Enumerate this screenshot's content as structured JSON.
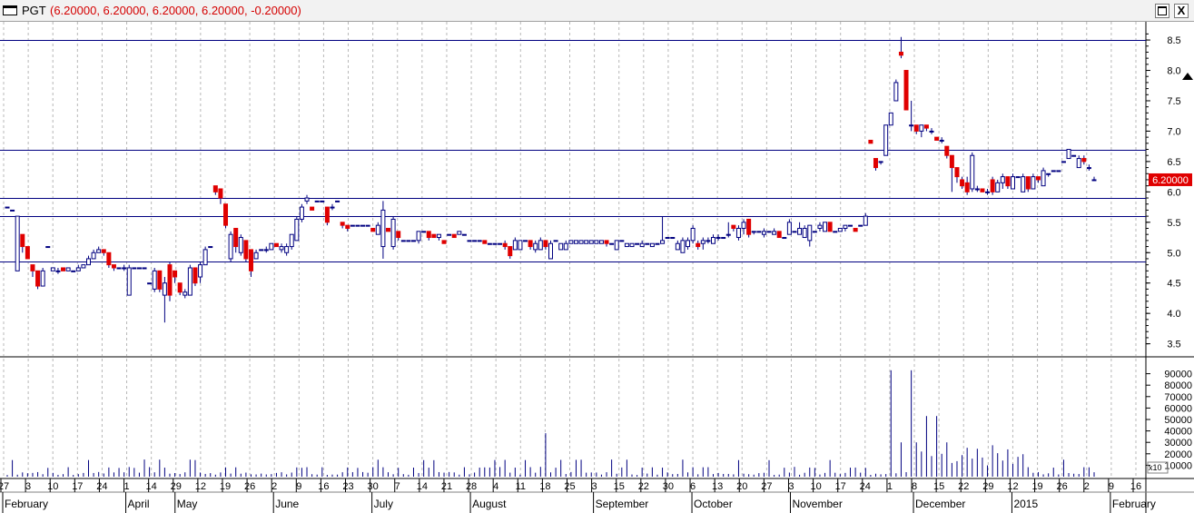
{
  "window": {
    "symbol": "PGT",
    "quote": "(6.20000, 6.20000, 6.20000, 6.20000, -0.20000)",
    "maximize_icon": "maximize-icon",
    "close_label": "X"
  },
  "price_panel": {
    "y_ticks": [
      "8.5",
      "8.0",
      "7.5",
      "7.0",
      "6.5",
      "6.0",
      "5.5",
      "5.0",
      "4.5",
      "4.0",
      "3.5"
    ],
    "last_price_label": "6.20000",
    "last_price_color": "#e00000",
    "scroll_up_icon": "scroll-up-arrow-icon"
  },
  "volume_panel": {
    "y_ticks": [
      "90000",
      "80000",
      "70000",
      "60000",
      "50000",
      "40000",
      "30000",
      "20000",
      "10000"
    ],
    "multiplier": "x10"
  },
  "x_axis": {
    "day_labels": [
      "27",
      "3",
      "10",
      "17",
      "24",
      "1",
      "14",
      "29",
      "12",
      "19",
      "26",
      "2",
      "9",
      "16",
      "23",
      "30",
      "7",
      "14",
      "21",
      "28",
      "4",
      "11",
      "18",
      "25",
      "3",
      "15",
      "22",
      "30",
      "6",
      "13",
      "20",
      "27",
      "3",
      "10",
      "17",
      "24",
      "1",
      "8",
      "15",
      "22",
      "29",
      "12",
      "19",
      "26",
      "2",
      "9",
      "16"
    ],
    "month_labels": [
      "February",
      "April",
      "May",
      "June",
      "July",
      "August",
      "September",
      "October",
      "November",
      "December",
      "2015",
      "February"
    ]
  },
  "colors": {
    "up_fill": "#ffffff",
    "down_fill": "#e00000",
    "candle_line": "#000080",
    "guide_lines": "#000080",
    "grid": "#b8b8b8"
  },
  "chart_data": {
    "type": "candlestick",
    "title": "PGT",
    "ylim": [
      3.3,
      8.8
    ],
    "horizontal_lines": [
      8.5,
      6.7,
      5.9,
      5.6,
      4.85
    ],
    "candles": [
      [
        5.75,
        5.75,
        5.75,
        5.75
      ],
      [
        5.7,
        5.7,
        5.7,
        5.7
      ],
      [
        4.7,
        5.6,
        4.7,
        5.6
      ],
      [
        5.3,
        5.3,
        5.0,
        5.1
      ],
      [
        5.1,
        5.1,
        4.9,
        4.9
      ],
      [
        4.8,
        4.8,
        4.6,
        4.7
      ],
      [
        4.7,
        4.7,
        4.4,
        4.45
      ],
      [
        4.45,
        4.75,
        4.45,
        4.7
      ],
      [
        5.1,
        5.1,
        5.1,
        5.1
      ],
      [
        4.7,
        4.75,
        4.7,
        4.75
      ],
      [
        4.7,
        4.75,
        4.65,
        4.7
      ],
      [
        4.75,
        4.75,
        4.7,
        4.7
      ],
      [
        4.7,
        4.75,
        4.7,
        4.75
      ],
      [
        4.7,
        4.7,
        4.7,
        4.7
      ],
      [
        4.7,
        4.8,
        4.7,
        4.75
      ],
      [
        4.75,
        4.8,
        4.75,
        4.8
      ],
      [
        4.8,
        4.95,
        4.8,
        4.9
      ],
      [
        4.9,
        5.05,
        4.9,
        5.0
      ],
      [
        5.0,
        5.1,
        5.0,
        5.05
      ],
      [
        5.05,
        5.05,
        4.95,
        5.0
      ],
      [
        5.0,
        5.0,
        4.75,
        4.8
      ],
      [
        4.8,
        4.8,
        4.7,
        4.75
      ],
      [
        4.75,
        4.75,
        4.75,
        4.75
      ],
      [
        4.75,
        4.8,
        4.7,
        4.75
      ],
      [
        4.3,
        4.8,
        4.3,
        4.75
      ],
      [
        4.75,
        4.75,
        4.75,
        4.75
      ],
      [
        4.75,
        4.75,
        4.75,
        4.75
      ],
      [
        4.75,
        4.75,
        4.75,
        4.75
      ],
      [
        4.5,
        4.5,
        4.5,
        4.5
      ],
      [
        4.4,
        4.75,
        4.35,
        4.7
      ],
      [
        4.7,
        4.7,
        4.35,
        4.4
      ],
      [
        4.3,
        4.6,
        3.85,
        4.5
      ],
      [
        4.8,
        4.85,
        4.2,
        4.3
      ],
      [
        4.7,
        4.7,
        4.5,
        4.6
      ],
      [
        4.5,
        4.5,
        4.3,
        4.35
      ],
      [
        4.3,
        4.4,
        4.25,
        4.35
      ],
      [
        4.3,
        4.8,
        4.3,
        4.75
      ],
      [
        4.75,
        4.75,
        4.45,
        4.5
      ],
      [
        4.6,
        4.85,
        4.5,
        4.8
      ],
      [
        4.8,
        5.1,
        4.8,
        5.05
      ],
      [
        5.1,
        5.1,
        5.1,
        5.1
      ],
      [
        6.1,
        6.1,
        5.95,
        6.0
      ],
      [
        6.05,
        6.05,
        5.8,
        5.9
      ],
      [
        5.8,
        5.8,
        5.4,
        5.45
      ],
      [
        4.9,
        5.35,
        4.85,
        5.3
      ],
      [
        5.4,
        5.4,
        5.0,
        5.1
      ],
      [
        5.0,
        5.3,
        4.95,
        5.25
      ],
      [
        5.2,
        5.2,
        4.85,
        4.9
      ],
      [
        5.05,
        5.05,
        4.6,
        4.7
      ],
      [
        4.9,
        5.05,
        4.9,
        5.0
      ],
      [
        5.05,
        5.05,
        5.05,
        5.05
      ],
      [
        5.05,
        5.1,
        5.0,
        5.05
      ],
      [
        5.05,
        5.15,
        5.05,
        5.15
      ],
      [
        5.15,
        5.15,
        5.1,
        5.1
      ],
      [
        5.05,
        5.15,
        5.0,
        5.1
      ],
      [
        5.0,
        5.15,
        4.95,
        5.1
      ],
      [
        5.1,
        5.3,
        5.05,
        5.3
      ],
      [
        5.2,
        5.6,
        5.2,
        5.55
      ],
      [
        5.55,
        5.8,
        5.5,
        5.75
      ],
      [
        5.85,
        5.95,
        5.8,
        5.9
      ],
      [
        5.75,
        5.75,
        5.7,
        5.7
      ],
      [
        5.85,
        5.85,
        5.85,
        5.85
      ],
      [
        5.85,
        5.85,
        5.85,
        5.85
      ],
      [
        5.75,
        5.75,
        5.45,
        5.5
      ],
      [
        5.75,
        5.8,
        5.7,
        5.75
      ],
      [
        5.85,
        5.85,
        5.85,
        5.85
      ],
      [
        5.5,
        5.5,
        5.4,
        5.45
      ],
      [
        5.45,
        5.45,
        5.35,
        5.4
      ],
      [
        5.45,
        5.45,
        5.45,
        5.45
      ],
      [
        5.45,
        5.45,
        5.45,
        5.45
      ],
      [
        5.45,
        5.45,
        5.45,
        5.45
      ],
      [
        5.45,
        5.45,
        5.45,
        5.45
      ],
      [
        5.4,
        5.4,
        5.35,
        5.35
      ],
      [
        5.3,
        5.5,
        5.3,
        5.45
      ],
      [
        5.1,
        5.85,
        4.9,
        5.7
      ],
      [
        5.4,
        5.4,
        5.35,
        5.35
      ],
      [
        5.1,
        5.6,
        5.05,
        5.55
      ],
      [
        5.35,
        5.35,
        5.2,
        5.25
      ],
      [
        5.2,
        5.2,
        5.2,
        5.2
      ],
      [
        5.2,
        5.2,
        5.2,
        5.2
      ],
      [
        5.2,
        5.2,
        5.2,
        5.2
      ],
      [
        5.2,
        5.35,
        5.15,
        5.35
      ],
      [
        5.35,
        5.35,
        5.35,
        5.35
      ],
      [
        5.35,
        5.35,
        5.2,
        5.25
      ],
      [
        5.3,
        5.3,
        5.25,
        5.25
      ],
      [
        5.25,
        5.3,
        5.2,
        5.3
      ],
      [
        5.2,
        5.2,
        5.15,
        5.15
      ],
      [
        5.3,
        5.3,
        5.3,
        5.3
      ],
      [
        5.3,
        5.3,
        5.25,
        5.25
      ],
      [
        5.3,
        5.35,
        5.3,
        5.35
      ],
      [
        5.3,
        5.3,
        5.3,
        5.3
      ],
      [
        5.2,
        5.2,
        5.2,
        5.2
      ],
      [
        5.2,
        5.2,
        5.2,
        5.2
      ],
      [
        5.2,
        5.2,
        5.2,
        5.2
      ],
      [
        5.2,
        5.2,
        5.15,
        5.15
      ],
      [
        5.15,
        5.15,
        5.15,
        5.15
      ],
      [
        5.15,
        5.15,
        5.15,
        5.15
      ],
      [
        5.15,
        5.15,
        5.15,
        5.15
      ],
      [
        5.15,
        5.2,
        5.05,
        5.1
      ],
      [
        5.1,
        5.1,
        4.9,
        4.95
      ],
      [
        5.05,
        5.25,
        5.05,
        5.2
      ],
      [
        5.05,
        5.2,
        5.05,
        5.2
      ],
      [
        5.2,
        5.2,
        5.2,
        5.2
      ],
      [
        5.2,
        5.2,
        5.05,
        5.1
      ],
      [
        5.05,
        5.2,
        5.0,
        5.15
      ],
      [
        5.05,
        5.25,
        5.05,
        5.2
      ],
      [
        5.2,
        5.2,
        5.05,
        5.1
      ],
      [
        4.9,
        5.2,
        4.9,
        5.15
      ],
      [
        5.2,
        5.2,
        5.2,
        5.2
      ],
      [
        5.05,
        5.15,
        5.05,
        5.15
      ],
      [
        5.05,
        5.2,
        5.05,
        5.15
      ],
      [
        5.15,
        5.2,
        5.15,
        5.2
      ],
      [
        5.15,
        5.2,
        5.15,
        5.2
      ],
      [
        5.15,
        5.2,
        5.15,
        5.2
      ],
      [
        5.15,
        5.2,
        5.15,
        5.2
      ],
      [
        5.15,
        5.2,
        5.15,
        5.2
      ],
      [
        5.15,
        5.2,
        5.15,
        5.2
      ],
      [
        5.15,
        5.2,
        5.15,
        5.2
      ],
      [
        5.2,
        5.2,
        5.1,
        5.15
      ],
      [
        5.15,
        5.15,
        5.15,
        5.15
      ],
      [
        5.05,
        5.2,
        5.05,
        5.2
      ],
      [
        5.2,
        5.2,
        5.2,
        5.2
      ],
      [
        5.1,
        5.15,
        5.1,
        5.15
      ],
      [
        5.1,
        5.15,
        5.1,
        5.15
      ],
      [
        5.15,
        5.15,
        5.15,
        5.15
      ],
      [
        5.1,
        5.2,
        5.1,
        5.15
      ],
      [
        5.15,
        5.15,
        5.15,
        5.15
      ],
      [
        5.1,
        5.15,
        5.1,
        5.15
      ],
      [
        5.15,
        5.15,
        5.15,
        5.15
      ],
      [
        5.15,
        5.6,
        5.15,
        5.2
      ],
      [
        5.25,
        5.25,
        5.25,
        5.25
      ],
      [
        5.25,
        5.25,
        5.25,
        5.25
      ],
      [
        5.05,
        5.2,
        5.05,
        5.15
      ],
      [
        5.0,
        5.25,
        5.0,
        5.2
      ],
      [
        5.1,
        5.25,
        5.05,
        5.2
      ],
      [
        5.2,
        5.45,
        5.15,
        5.4
      ],
      [
        5.15,
        5.2,
        5.05,
        5.1
      ],
      [
        5.15,
        5.25,
        5.05,
        5.2
      ],
      [
        5.2,
        5.25,
        5.15,
        5.2
      ],
      [
        5.15,
        5.3,
        5.15,
        5.25
      ],
      [
        5.25,
        5.3,
        5.2,
        5.25
      ],
      [
        5.25,
        5.25,
        5.25,
        5.25
      ],
      [
        5.3,
        5.5,
        5.25,
        5.3
      ],
      [
        5.45,
        5.45,
        5.35,
        5.4
      ],
      [
        5.25,
        5.45,
        5.2,
        5.4
      ],
      [
        5.4,
        5.55,
        5.3,
        5.5
      ],
      [
        5.55,
        5.55,
        5.25,
        5.3
      ],
      [
        5.35,
        5.35,
        5.3,
        5.35
      ],
      [
        5.35,
        5.35,
        5.35,
        5.35
      ],
      [
        5.3,
        5.4,
        5.25,
        5.35
      ],
      [
        5.35,
        5.35,
        5.35,
        5.35
      ],
      [
        5.3,
        5.4,
        5.3,
        5.35
      ],
      [
        5.35,
        5.35,
        5.25,
        5.25
      ],
      [
        5.25,
        5.25,
        5.25,
        5.25
      ],
      [
        5.3,
        5.55,
        5.3,
        5.5
      ],
      [
        5.35,
        5.35,
        5.35,
        5.35
      ],
      [
        5.3,
        5.5,
        5.3,
        5.4
      ],
      [
        5.25,
        5.45,
        5.25,
        5.4
      ],
      [
        5.2,
        5.45,
        5.1,
        5.45
      ],
      [
        5.35,
        5.35,
        5.35,
        5.35
      ],
      [
        5.4,
        5.5,
        5.35,
        5.45
      ],
      [
        5.35,
        5.5,
        5.35,
        5.5
      ],
      [
        5.5,
        5.5,
        5.35,
        5.35
      ],
      [
        5.35,
        5.35,
        5.35,
        5.35
      ],
      [
        5.35,
        5.4,
        5.35,
        5.4
      ],
      [
        5.4,
        5.45,
        5.35,
        5.45
      ],
      [
        5.45,
        5.45,
        5.45,
        5.45
      ],
      [
        5.4,
        5.4,
        5.35,
        5.35
      ],
      [
        5.45,
        5.45,
        5.45,
        5.45
      ],
      [
        5.45,
        5.65,
        5.45,
        5.6
      ],
      [
        6.85,
        6.85,
        6.8,
        6.8
      ],
      [
        6.55,
        6.55,
        6.35,
        6.4
      ],
      [
        6.5,
        6.5,
        6.45,
        6.5
      ],
      [
        6.6,
        7.1,
        6.6,
        7.1
      ],
      [
        7.1,
        7.3,
        7.1,
        7.3
      ],
      [
        7.5,
        7.85,
        7.5,
        7.8
      ],
      [
        8.3,
        8.55,
        8.2,
        8.25
      ],
      [
        8.0,
        8.0,
        7.35,
        7.35
      ],
      [
        7.1,
        7.5,
        7.0,
        7.1
      ],
      [
        7.1,
        7.1,
        6.95,
        7.0
      ],
      [
        7.0,
        7.1,
        6.9,
        7.1
      ],
      [
        7.1,
        7.1,
        7.0,
        7.05
      ],
      [
        7.0,
        7.05,
        6.95,
        7.0
      ],
      [
        6.9,
        6.9,
        6.85,
        6.85
      ],
      [
        6.85,
        6.9,
        6.8,
        6.85
      ],
      [
        6.75,
        6.75,
        6.55,
        6.6
      ],
      [
        6.6,
        6.6,
        6.0,
        6.4
      ],
      [
        6.4,
        6.4,
        6.15,
        6.25
      ],
      [
        6.2,
        6.25,
        6.05,
        6.1
      ],
      [
        6.15,
        6.25,
        5.95,
        6.0
      ],
      [
        6.05,
        6.65,
        6.0,
        6.6
      ],
      [
        6.05,
        6.1,
        6.0,
        6.05
      ],
      [
        6.05,
        6.05,
        6.0,
        6.0
      ],
      [
        6.0,
        6.05,
        5.95,
        6.0
      ],
      [
        6.2,
        6.25,
        5.95,
        6.0
      ],
      [
        6.0,
        6.2,
        6.0,
        6.15
      ],
      [
        6.15,
        6.3,
        6.05,
        6.25
      ],
      [
        6.25,
        6.25,
        6.05,
        6.1
      ],
      [
        6.05,
        6.3,
        6.05,
        6.25
      ],
      [
        6.25,
        6.25,
        6.25,
        6.25
      ],
      [
        6.0,
        6.3,
        6.0,
        6.25
      ],
      [
        6.25,
        6.25,
        6.0,
        6.05
      ],
      [
        6.05,
        6.3,
        6.05,
        6.25
      ],
      [
        6.25,
        6.25,
        6.15,
        6.2
      ],
      [
        6.1,
        6.4,
        6.1,
        6.35
      ],
      [
        6.3,
        6.3,
        6.25,
        6.3
      ],
      [
        6.35,
        6.35,
        6.35,
        6.35
      ],
      [
        6.35,
        6.35,
        6.35,
        6.35
      ],
      [
        6.5,
        6.5,
        6.5,
        6.5
      ],
      [
        6.55,
        6.7,
        6.55,
        6.7
      ],
      [
        6.6,
        6.6,
        6.6,
        6.6
      ],
      [
        6.4,
        6.6,
        6.4,
        6.55
      ],
      [
        6.55,
        6.6,
        6.45,
        6.5
      ],
      [
        6.4,
        6.45,
        6.35,
        6.4
      ],
      [
        6.2,
        6.25,
        6.2,
        6.2
      ]
    ],
    "volume_spikes": [
      {
        "x_label_index": 22,
        "value": 38000
      },
      {
        "x_label_index": 36,
        "value": 93000
      },
      {
        "x_label_index": 38,
        "value": 53000
      }
    ]
  }
}
